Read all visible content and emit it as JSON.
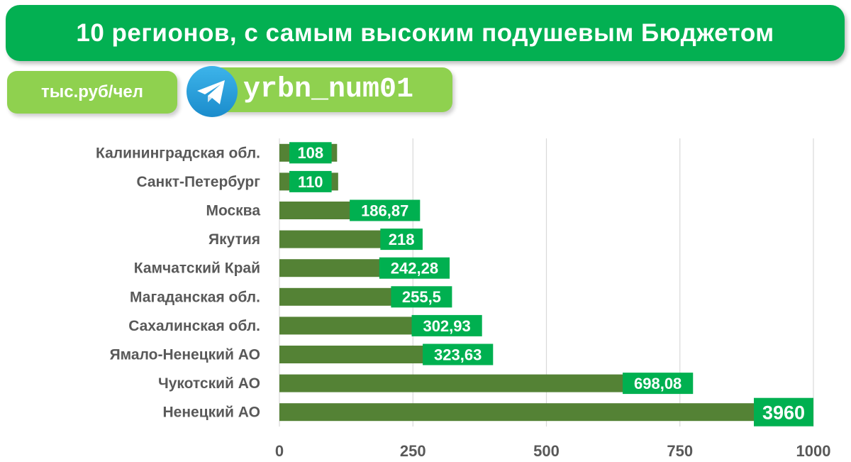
{
  "title": "10 регионов, с самым высоким подушевым Бюджетом",
  "unit_label": "тыс.руб/чел",
  "channel": {
    "icon": "telegram-icon",
    "handle": "yrbn_num01"
  },
  "colors": {
    "title_bg": "#03b052",
    "pill_bg": "#8fd14f",
    "bar": "#548235",
    "label_bg": "#00b050",
    "category_text": "#595959",
    "grid": "#d9d9d9"
  },
  "chart_data": {
    "type": "bar",
    "orientation": "horizontal",
    "categories": [
      "Калининградская обл.",
      "Санкт-Петербург",
      "Москва",
      "Якутия",
      "Камчатский Край",
      "Магаданская обл.",
      "Сахалинская обл.",
      "Ямало-Ненецкий АО",
      "Чукотский АО",
      "Ненецкий АО"
    ],
    "values": [
      108,
      110,
      186.87,
      218,
      242.28,
      255.5,
      302.93,
      323.63,
      698.08,
      3960
    ],
    "data_labels": [
      "108",
      "110",
      "186,87",
      "218",
      "242,28",
      "255,5",
      "302,93",
      "323,63",
      "698,08",
      "3960"
    ],
    "xlim": [
      0,
      1000
    ],
    "x_ticks": [
      0,
      250,
      500,
      750,
      1000
    ],
    "x_tick_labels": [
      "0",
      "250",
      "500",
      "750",
      "1000"
    ],
    "grid": true,
    "note_truncated": "Ненецкий АО bar exceeds axis maximum and is cut at 1000"
  }
}
